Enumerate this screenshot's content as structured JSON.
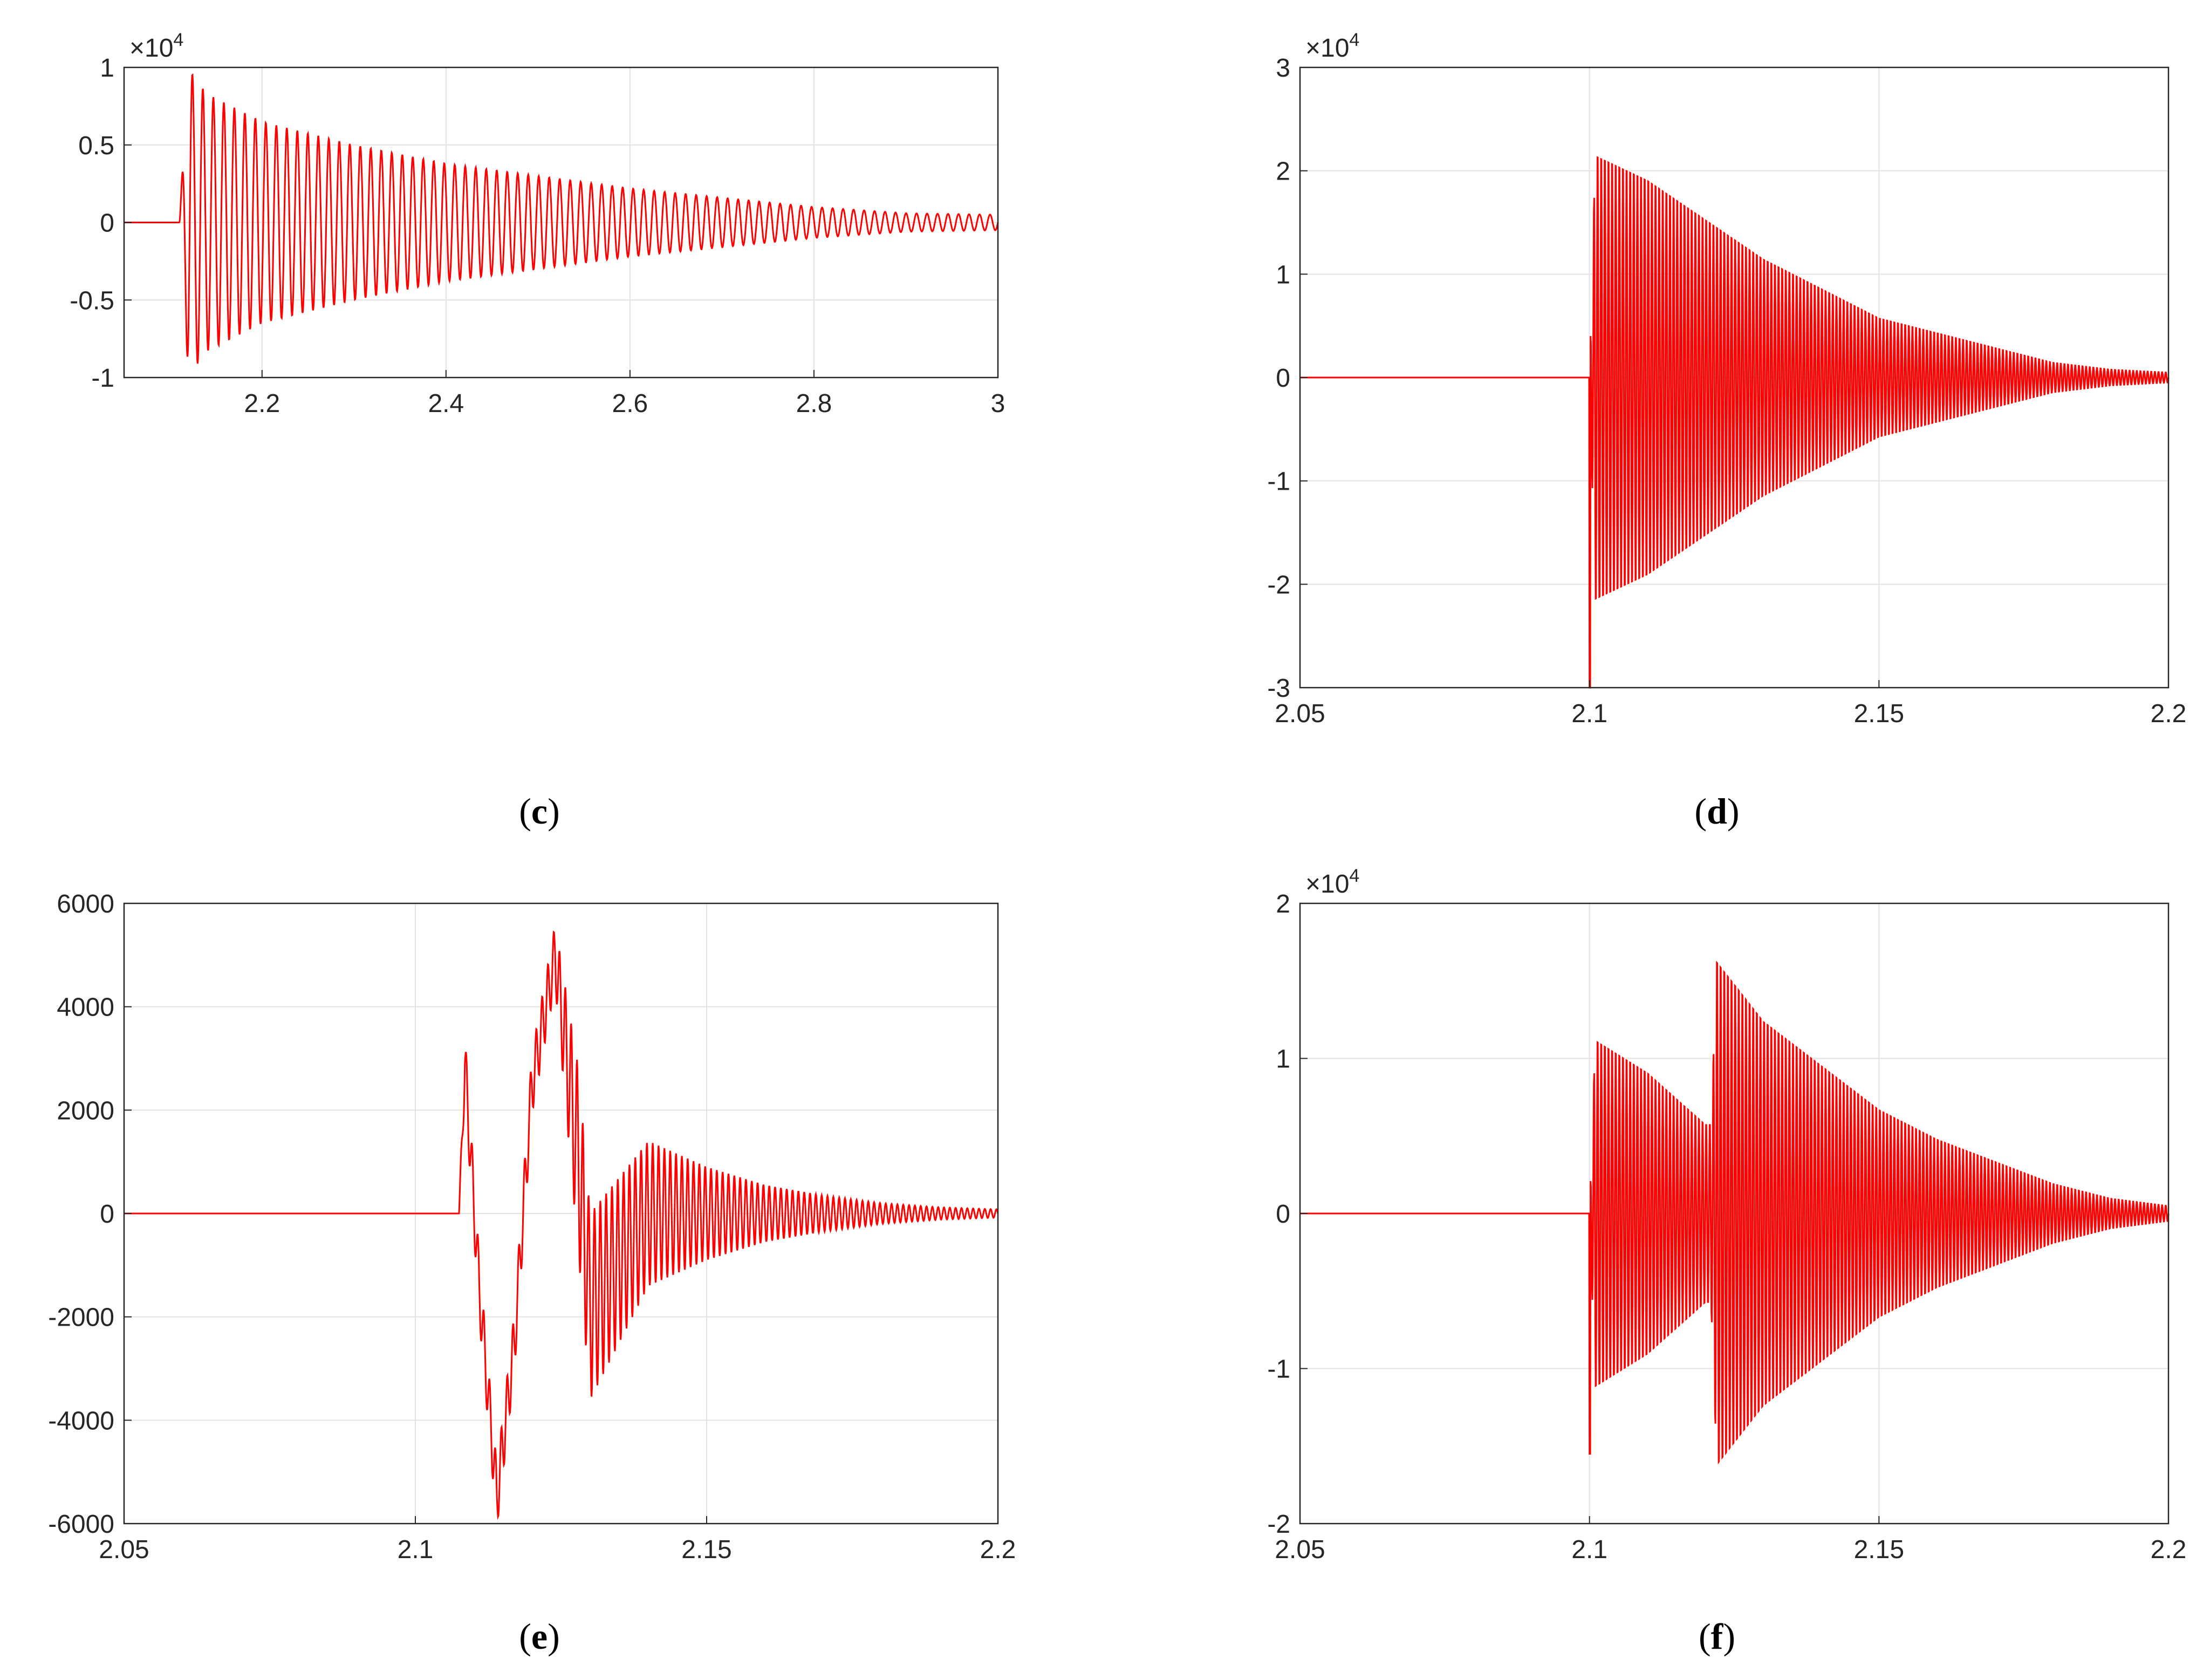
{
  "chart_data": [
    {
      "type": "line",
      "panel": "c",
      "caption": "c",
      "multiplier": "10",
      "multiplier_exponent": "4",
      "xlim": [
        2.05,
        3.0
      ],
      "ylim": [
        -1,
        1
      ],
      "xticks": [
        2.2,
        2.4,
        2.6,
        2.8,
        3.0
      ],
      "xtick_labels": [
        "2.2",
        "2.4",
        "2.6",
        "2.8",
        "3"
      ],
      "yticks": [
        -1,
        -0.5,
        0,
        0.5,
        1
      ],
      "ytick_labels": [
        "-1",
        "-0.5",
        "0",
        "0.5",
        "1"
      ],
      "grid": true,
      "line_color": "#ff0000",
      "series": [
        {
          "x": [
            2.05,
            2.11,
            2.12,
            2.14,
            2.2,
            2.3,
            2.4,
            2.5,
            2.6,
            2.7,
            2.8,
            2.9,
            3.0
          ],
          "amplitude": [
            0,
            0,
            0.99,
            0.83,
            0.65,
            0.5,
            0.38,
            0.3,
            0.22,
            0.16,
            0.1,
            0.06,
            0.05
          ]
        }
      ]
    },
    {
      "type": "line",
      "panel": "d",
      "caption": "d",
      "multiplier": "10",
      "multiplier_exponent": "4",
      "xlim": [
        2.05,
        2.2
      ],
      "ylim": [
        -3,
        3
      ],
      "xticks": [
        2.05,
        2.1,
        2.15,
        2.2
      ],
      "xtick_labels": [
        "2.05",
        "2.1",
        "2.15",
        "2.2"
      ],
      "yticks": [
        -3,
        -2,
        -1,
        0,
        1,
        2,
        3
      ],
      "ytick_labels": [
        "-3",
        "-2",
        "-1",
        "0",
        "1",
        "2",
        "3"
      ],
      "grid": true,
      "line_color": "#ff0000",
      "series": [
        {
          "x": [
            2.05,
            2.1,
            2.101,
            2.11,
            2.12,
            2.13,
            2.14,
            2.15,
            2.16,
            2.17,
            2.18,
            2.19,
            2.2
          ],
          "amplitude": [
            0,
            0,
            2.25,
            2.0,
            1.6,
            1.2,
            0.9,
            0.6,
            0.45,
            0.3,
            0.15,
            0.08,
            0.05
          ],
          "initial_spike": -3.0
        }
      ]
    },
    {
      "type": "line",
      "panel": "e",
      "caption": "e",
      "xlim": [
        2.05,
        2.2
      ],
      "ylim": [
        -6000,
        6000
      ],
      "xticks": [
        2.05,
        2.1,
        2.15,
        2.2
      ],
      "xtick_labels": [
        "2.05",
        "2.1",
        "2.15",
        "2.2"
      ],
      "yticks": [
        -6000,
        -4000,
        -2000,
        0,
        2000,
        4000,
        6000
      ],
      "ytick_labels": [
        "-6000",
        "-4000",
        "-2000",
        "0",
        "2000",
        "4000",
        "6000"
      ],
      "grid": true,
      "line_color": "#ff0000",
      "series": [
        {
          "x": [
            2.05,
            2.1075,
            2.1085,
            2.111,
            2.114,
            2.117,
            2.12,
            2.124,
            2.128,
            2.13,
            2.14,
            2.15,
            2.16,
            2.17,
            2.18,
            2.19,
            2.2
          ],
          "y": [
            0,
            0,
            2900,
            -1500,
            -5500,
            -2500,
            2500,
            5000,
            1000,
            -1800,
            0,
            0,
            0,
            0,
            0,
            0,
            0
          ],
          "oscillation_amplitude": [
            0,
            0,
            600,
            600,
            600,
            600,
            600,
            600,
            1800,
            1800,
            1400,
            900,
            550,
            350,
            200,
            120,
            80
          ]
        }
      ]
    },
    {
      "type": "line",
      "panel": "f",
      "caption": "f",
      "multiplier": "10",
      "multiplier_exponent": "4",
      "xlim": [
        2.05,
        2.2
      ],
      "ylim": [
        -2,
        2
      ],
      "xticks": [
        2.05,
        2.1,
        2.15,
        2.2
      ],
      "xtick_labels": [
        "2.05",
        "2.1",
        "2.15",
        "2.2"
      ],
      "yticks": [
        -2,
        -1,
        0,
        1,
        2
      ],
      "ytick_labels": [
        "-2",
        "-1",
        "0",
        "1",
        "2"
      ],
      "grid": true,
      "line_color": "#ff0000",
      "series": [
        {
          "x": [
            2.05,
            2.1,
            2.101,
            2.11,
            2.12,
            2.121,
            2.122,
            2.13,
            2.14,
            2.15,
            2.16,
            2.17,
            2.18,
            2.19,
            2.2
          ],
          "amplitude": [
            0,
            0,
            1.17,
            0.95,
            0.6,
            0.6,
            1.7,
            1.3,
            1.0,
            0.7,
            0.5,
            0.35,
            0.2,
            0.1,
            0.05
          ],
          "initial_spike": -1.55
        }
      ]
    }
  ]
}
